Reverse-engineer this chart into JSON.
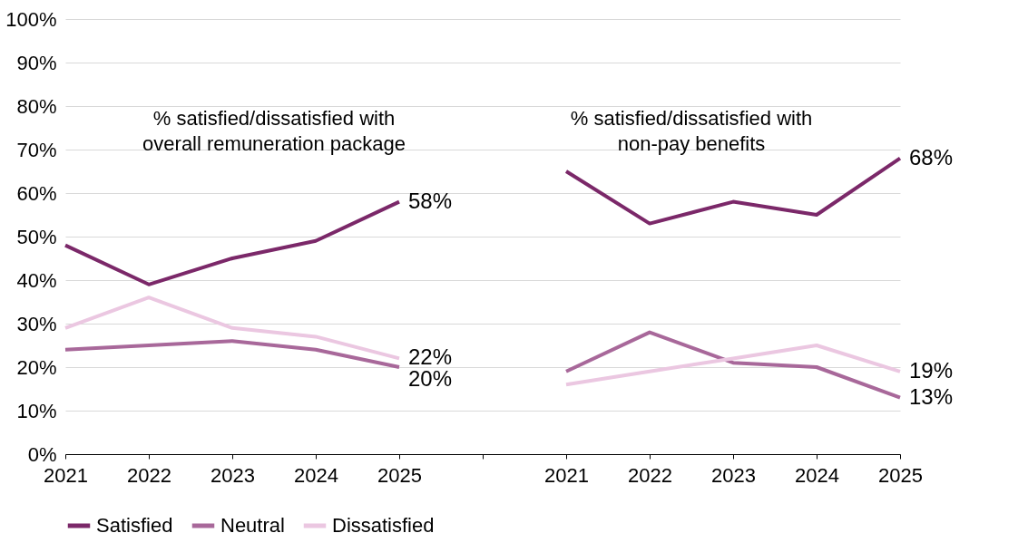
{
  "chart_data": {
    "type": "line",
    "categories": [
      "2021",
      "2022",
      "2023",
      "2024",
      "2025",
      null,
      "2021",
      "2022",
      "2023",
      "2024",
      "2025"
    ],
    "series": [
      {
        "name": "Satisfied",
        "color": "#7b2869",
        "values": [
          48,
          39,
          45,
          49,
          58,
          null,
          65,
          53,
          58,
          55,
          68
        ],
        "value_labels": [
          null,
          null,
          null,
          null,
          "58%",
          null,
          null,
          null,
          null,
          null,
          "68%"
        ]
      },
      {
        "name": "Neutral",
        "color": "#a8689a",
        "values": [
          24,
          25,
          26,
          24,
          20,
          null,
          19,
          28,
          21,
          20,
          13
        ],
        "value_labels": [
          null,
          null,
          null,
          null,
          "20%",
          null,
          null,
          null,
          null,
          null,
          "13%"
        ]
      },
      {
        "name": "Dissatisfied",
        "color": "#ebc7e1",
        "values": [
          29,
          36,
          29,
          27,
          22,
          null,
          16,
          19,
          22,
          25,
          19
        ],
        "value_labels": [
          null,
          null,
          null,
          null,
          "22%",
          null,
          null,
          null,
          null,
          null,
          "19%"
        ]
      }
    ],
    "annotations": [
      "% satisfied/dissatisfied with\noverall remuneration package",
      "% satisfied/dissatisfied with\nnon-pay benefits"
    ],
    "ylim": [
      0,
      100
    ],
    "yticks": [
      {
        "value": 0,
        "label": "0%"
      },
      {
        "value": 10,
        "label": "10%"
      },
      {
        "value": 20,
        "label": "20%"
      },
      {
        "value": 30,
        "label": "30%"
      },
      {
        "value": 40,
        "label": "40%"
      },
      {
        "value": 50,
        "label": "50%"
      },
      {
        "value": 60,
        "label": "60%"
      },
      {
        "value": 70,
        "label": "70%"
      },
      {
        "value": 80,
        "label": "80%"
      },
      {
        "value": 90,
        "label": "90%"
      },
      {
        "value": 100,
        "label": "100%"
      }
    ],
    "grid": "y",
    "legend": "bottom",
    "marker": "none",
    "line_style": "solid"
  }
}
